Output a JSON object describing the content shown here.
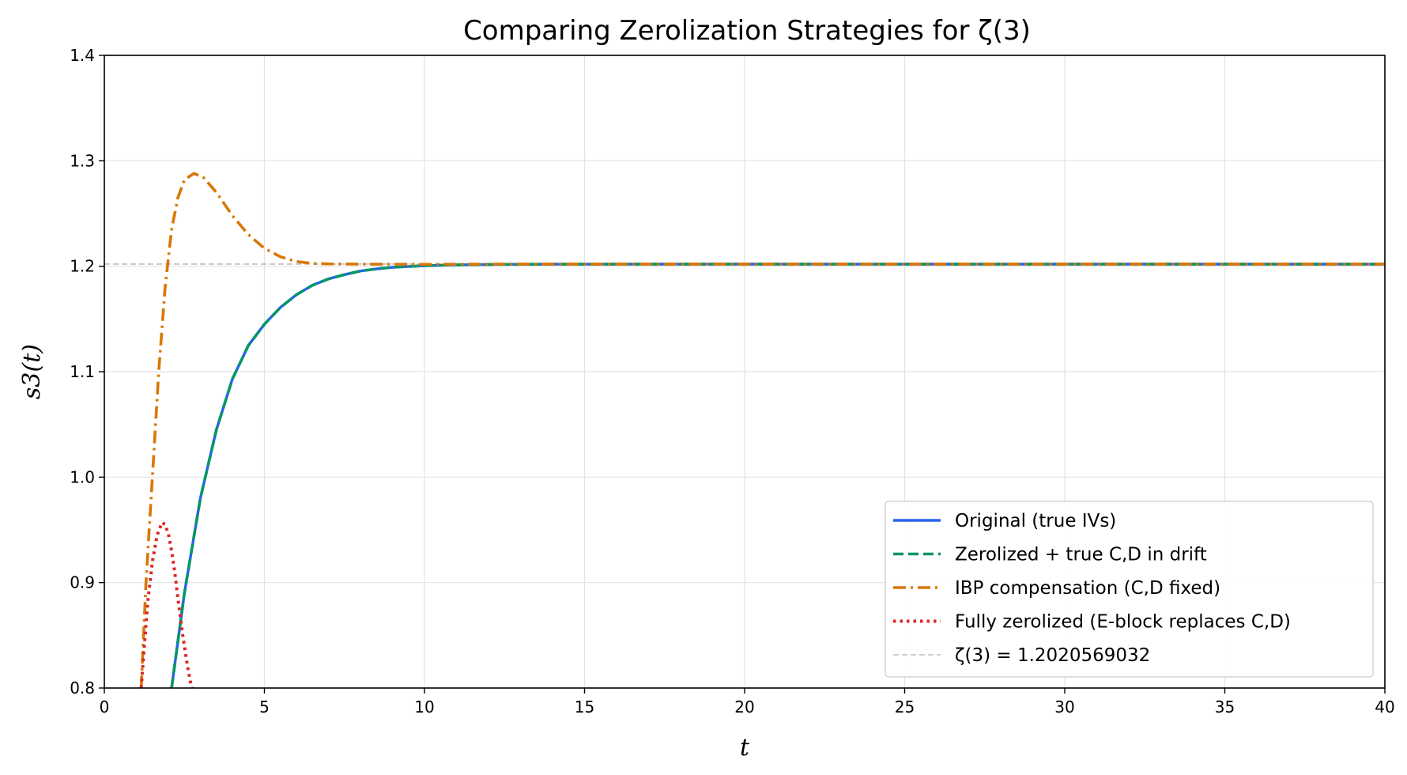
{
  "chart_data": {
    "type": "line",
    "title": "Comparing Zerolization Strategies for ζ(3)",
    "xlabel": "t",
    "ylabel": "s3(t)",
    "xlim": [
      0,
      40
    ],
    "ylim": [
      0.8,
      1.4
    ],
    "xticks": [
      0,
      5,
      10,
      15,
      20,
      25,
      30,
      35,
      40
    ],
    "yticks": [
      0.8,
      0.9,
      1.0,
      1.1,
      1.2,
      1.3,
      1.4
    ],
    "xtick_labels": [
      "0",
      "5",
      "10",
      "15",
      "20",
      "25",
      "30",
      "35",
      "40"
    ],
    "ytick_labels": [
      "0.8",
      "0.9",
      "1.0",
      "1.1",
      "1.2",
      "1.3",
      "1.4"
    ],
    "grid": true,
    "legend_position": "lower-right",
    "series": [
      {
        "name": "Original (true IVs)",
        "color": "#2563eb",
        "style": "solid",
        "x": [
          2.1,
          2.5,
          3.0,
          3.5,
          4.0,
          4.5,
          5.0,
          5.5,
          6.0,
          6.5,
          7.0,
          7.5,
          8.0,
          8.5,
          9.0,
          10.0,
          11.0,
          12.0,
          14.0,
          16.0,
          20.0,
          25.0,
          30.0,
          35.0,
          40.0
        ],
        "y": [
          0.8,
          0.89,
          0.98,
          1.045,
          1.093,
          1.125,
          1.145,
          1.161,
          1.173,
          1.182,
          1.188,
          1.192,
          1.1955,
          1.1975,
          1.199,
          1.2005,
          1.2013,
          1.2017,
          1.2019,
          1.202,
          1.202,
          1.202,
          1.202,
          1.202,
          1.202
        ]
      },
      {
        "name": "Zerolized + true C,D in drift",
        "color": "#059669",
        "style": "dashed",
        "x": [
          2.1,
          2.5,
          3.0,
          3.5,
          4.0,
          4.5,
          5.0,
          5.5,
          6.0,
          6.5,
          7.0,
          7.5,
          8.0,
          8.5,
          9.0,
          10.0,
          11.0,
          12.0,
          14.0,
          16.0,
          20.0,
          25.0,
          30.0,
          35.0,
          40.0
        ],
        "y": [
          0.8,
          0.89,
          0.98,
          1.045,
          1.093,
          1.125,
          1.145,
          1.161,
          1.173,
          1.182,
          1.188,
          1.192,
          1.1955,
          1.1975,
          1.199,
          1.2005,
          1.2013,
          1.2017,
          1.2019,
          1.202,
          1.202,
          1.202,
          1.202,
          1.202,
          1.202
        ]
      },
      {
        "name": "IBP compensation (C,D fixed)",
        "color": "#d97706",
        "style": "dashdot",
        "x": [
          1.15,
          1.3,
          1.5,
          1.7,
          1.9,
          2.1,
          2.3,
          2.5,
          2.8,
          3.1,
          3.5,
          4.0,
          4.5,
          5.0,
          5.5,
          6.0,
          6.5,
          7.0,
          8.0,
          9.0,
          10.0,
          12.0,
          15.0,
          20.0,
          30.0,
          40.0
        ],
        "y": [
          0.8,
          0.9,
          1.0,
          1.1,
          1.18,
          1.235,
          1.265,
          1.282,
          1.288,
          1.284,
          1.27,
          1.248,
          1.23,
          1.217,
          1.209,
          1.2045,
          1.2027,
          1.2022,
          1.202,
          1.2019,
          1.2018,
          1.202,
          1.2021,
          1.2021,
          1.2021,
          1.2021
        ]
      },
      {
        "name": "Fully zerolized (E-block replaces C,D)",
        "color": "#dc2626",
        "style": "dotted",
        "x": [
          1.15,
          1.25,
          1.35,
          1.5,
          1.65,
          1.8,
          1.9,
          2.0,
          2.1,
          2.2,
          2.3,
          2.45,
          2.6,
          2.7,
          2.75
        ],
        "y": [
          0.8,
          0.84,
          0.88,
          0.92,
          0.945,
          0.957,
          0.955,
          0.946,
          0.93,
          0.91,
          0.885,
          0.85,
          0.82,
          0.804,
          0.8
        ]
      },
      {
        "name": "ζ(3) = 1.2020569032",
        "color": "#bdbdbd",
        "style": "dashed-thin",
        "x": [
          0,
          40
        ],
        "y": [
          1.2020569032,
          1.2020569032
        ]
      }
    ]
  }
}
